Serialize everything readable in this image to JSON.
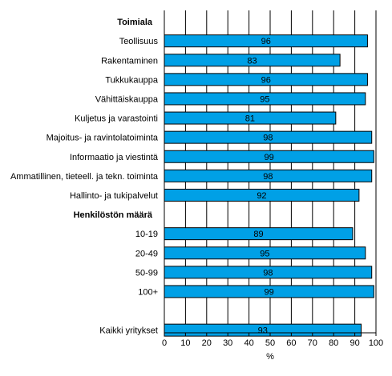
{
  "chart_data": {
    "type": "bar",
    "orientation": "horizontal",
    "xlabel": "%",
    "xlim": [
      0,
      100
    ],
    "xticks": [
      "0",
      "10",
      "20",
      "30",
      "40",
      "50",
      "60",
      "70",
      "80",
      "90",
      "100"
    ],
    "grid": "vertical",
    "rows": [
      {
        "kind": "heading",
        "label": "Toimiala"
      },
      {
        "kind": "bar",
        "label": "Teollisuus",
        "value": 96
      },
      {
        "kind": "bar",
        "label": "Rakentaminen",
        "value": 83
      },
      {
        "kind": "bar",
        "label": "Tukkukauppa",
        "value": 96
      },
      {
        "kind": "bar",
        "label": "Vähittäiskauppa",
        "value": 95
      },
      {
        "kind": "bar",
        "label": "Kuljetus ja varastointi",
        "value": 81
      },
      {
        "kind": "bar",
        "label": "Majoitus- ja ravintolatoiminta",
        "value": 98
      },
      {
        "kind": "bar",
        "label": "Informaatio ja viestintä",
        "value": 99
      },
      {
        "kind": "bar",
        "label": "Ammatillinen, tieteell. ja tekn. toiminta",
        "value": 98
      },
      {
        "kind": "bar",
        "label": "Hallinto- ja tukipalvelut",
        "value": 92
      },
      {
        "kind": "heading",
        "label": "Henkilöstön määrä"
      },
      {
        "kind": "bar",
        "label": "10-19",
        "value": 89
      },
      {
        "kind": "bar",
        "label": "20-49",
        "value": 95
      },
      {
        "kind": "bar",
        "label": "50-99",
        "value": 98
      },
      {
        "kind": "bar",
        "label": "100+",
        "value": 99
      },
      {
        "kind": "blank",
        "label": ""
      },
      {
        "kind": "bar",
        "label": "Kaikki yritykset",
        "value": 93
      }
    ],
    "colors": {
      "bar": "#00A0E6",
      "bar_stroke": "#000000",
      "grid": "#000000"
    }
  }
}
